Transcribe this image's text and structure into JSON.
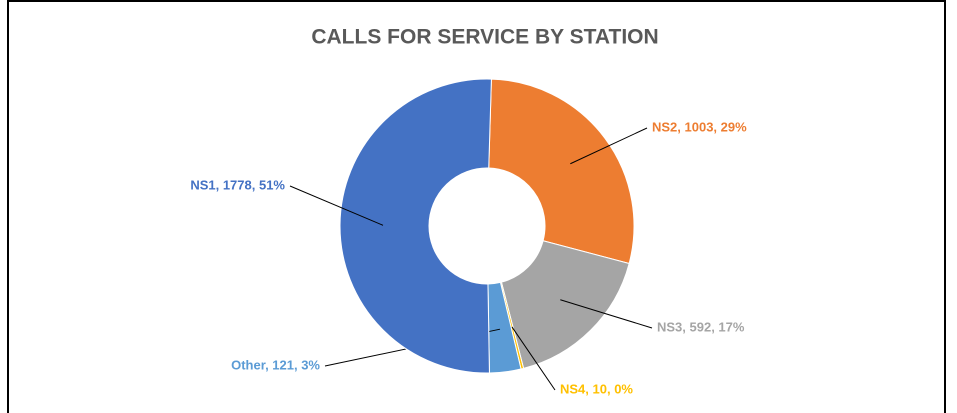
{
  "chart_data": {
    "type": "donut",
    "title": "CALLS FOR SERVICE BY STATION",
    "categories": [
      "NS2",
      "NS3",
      "NS4",
      "Other",
      "NS1"
    ],
    "values": [
      1003,
      592,
      10,
      121,
      1778
    ],
    "value_labels": [
      "NS2, 1003, 29%",
      "NS3, 592, 17%",
      "NS4, 10, 0%",
      "Other, 121, 3%",
      "NS1, 1778, 51%"
    ],
    "colors": [
      "#ed7d31",
      "#a5a5a5",
      "#ffc000",
      "#5b9bd5",
      "#4472c4"
    ]
  }
}
